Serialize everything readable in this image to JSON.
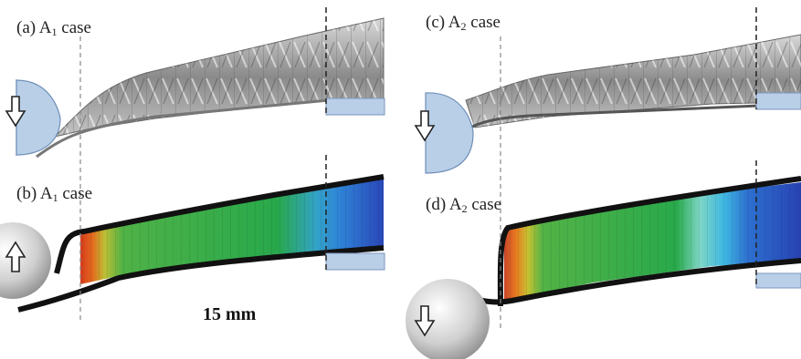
{
  "panels": [
    {
      "tag": "(a)",
      "case": "A",
      "sub": "1",
      "word": "case"
    },
    {
      "tag": "(b)",
      "case": "A",
      "sub": "1",
      "word": "case"
    },
    {
      "tag": "(c)",
      "case": "A",
      "sub": "2",
      "word": "case"
    },
    {
      "tag": "(d)",
      "case": "A",
      "sub": "2",
      "word": "case"
    }
  ],
  "scale_label": "15 mm",
  "colors": {
    "indenter": "#b9cfe8",
    "support": "#b9cfe8",
    "skin": "#111111",
    "core_green": "#27a84a",
    "core_blue": "#2b4fc2",
    "core_cyan": "#35b6e6",
    "core_red": "#e0401c",
    "core_yellow": "#d8c23a"
  },
  "arrows": {
    "a": "down",
    "b": "up",
    "c": "down",
    "d": "down"
  }
}
